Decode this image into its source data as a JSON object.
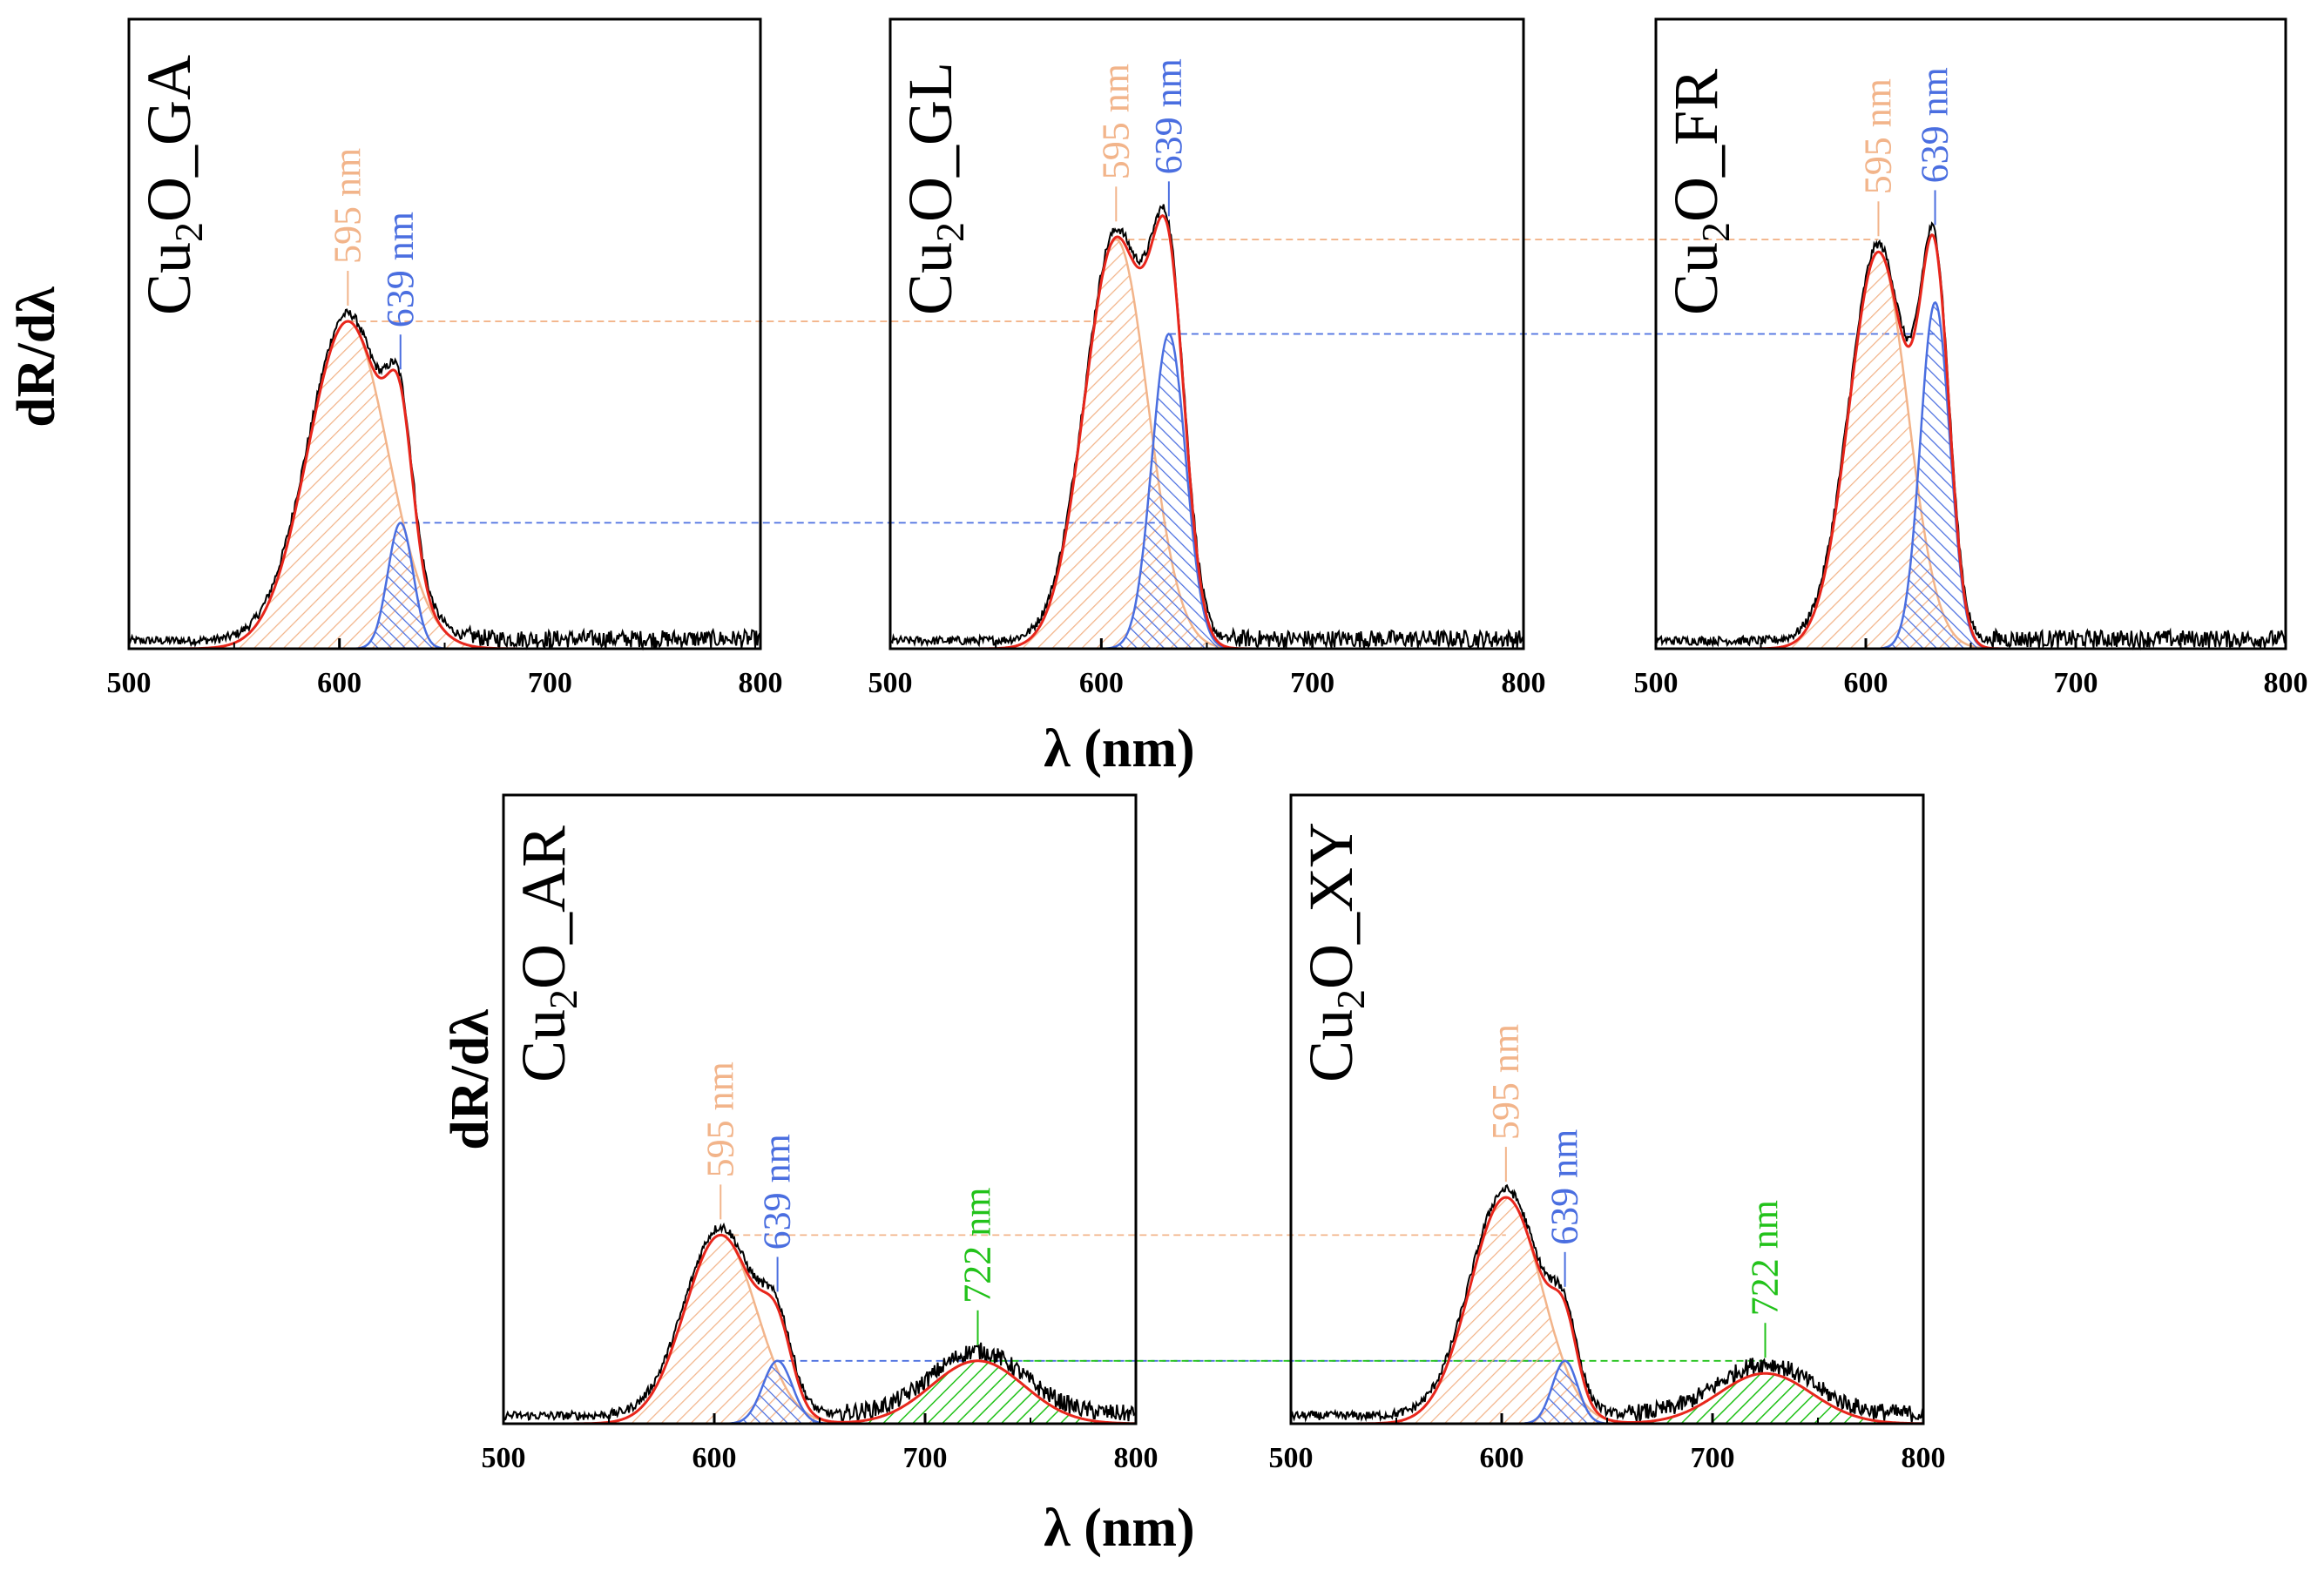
{
  "colors": {
    "peak_595": "#f2b48a",
    "peak_639": "#4a6ee0",
    "peak_722": "#22c21a",
    "fit": "#e8261c",
    "data": "#000000"
  },
  "figure": {
    "y_axis_title": "dR/dλ",
    "x_axis_title": "λ (nm)"
  },
  "chart_data": [
    {
      "type": "line",
      "panel": "Cu2O_GA",
      "title": "Cu2O_GA",
      "title_parts": [
        "Cu",
        "2",
        "O_GA"
      ],
      "xlabel": "λ (nm)",
      "ylabel": "dR/dλ",
      "xlim": [
        500,
        800
      ],
      "ylim": [
        0,
        1
      ],
      "xticks": [
        500,
        600,
        700,
        800
      ],
      "xtick_labels": [
        "500",
        "600",
        "700",
        "800"
      ],
      "series": [
        {
          "name": "595 nm",
          "center": 604,
          "sigma": 19,
          "amplitude": 0.52,
          "color": "#f2b48a",
          "label_x": 604
        },
        {
          "name": "639 nm",
          "center": 629,
          "sigma": 6,
          "amplitude": 0.2,
          "color": "#4a6ee0",
          "label_x": 629
        }
      ]
    },
    {
      "type": "line",
      "panel": "Cu2O_GL",
      "title": "Cu2O_GL",
      "title_parts": [
        "Cu",
        "2",
        "O_GL"
      ],
      "xlabel": "λ (nm)",
      "ylabel": "dR/dλ",
      "xlim": [
        500,
        800
      ],
      "ylim": [
        0,
        1
      ],
      "xticks": [
        500,
        600,
        700,
        800
      ],
      "xtick_labels": [
        "500",
        "600",
        "700",
        "800"
      ],
      "series": [
        {
          "name": "595 nm",
          "center": 607,
          "sigma": 15,
          "amplitude": 0.65,
          "color": "#f2b48a",
          "label_x": 607
        },
        {
          "name": "639 nm",
          "center": 632,
          "sigma": 8,
          "amplitude": 0.5,
          "color": "#4a6ee0",
          "label_x": 632
        }
      ]
    },
    {
      "type": "line",
      "panel": "Cu2O_FR",
      "title": "Cu2O_FR",
      "title_parts": [
        "Cu",
        "2",
        "O_FR"
      ],
      "xlabel": "λ (nm)",
      "ylabel": "dR/dλ",
      "xlim": [
        500,
        800
      ],
      "ylim": [
        0,
        1
      ],
      "xticks": [
        500,
        600,
        700,
        800
      ],
      "xtick_labels": [
        "500",
        "600",
        "700",
        "800"
      ],
      "series": [
        {
          "name": "595 nm",
          "center": 606,
          "sigma": 14,
          "amplitude": 0.63,
          "color": "#f2b48a",
          "label_x": 606
        },
        {
          "name": "639 nm",
          "center": 633,
          "sigma": 7,
          "amplitude": 0.55,
          "color": "#4a6ee0",
          "label_x": 633
        }
      ]
    },
    {
      "type": "line",
      "panel": "Cu2O_AR",
      "title": "Cu2O_AR",
      "title_parts": [
        "Cu",
        "2",
        "O_AR"
      ],
      "xlabel": "λ (nm)",
      "ylabel": "dR/dλ",
      "xlim": [
        500,
        800
      ],
      "ylim": [
        0,
        1
      ],
      "xticks": [
        500,
        600,
        700,
        800
      ],
      "xtick_labels": [
        "500",
        "600",
        "700",
        "800"
      ],
      "series": [
        {
          "name": "595 nm",
          "center": 603,
          "sigma": 17,
          "amplitude": 0.3,
          "color": "#f2b48a",
          "label_x": 603
        },
        {
          "name": "639 nm",
          "center": 630,
          "sigma": 7,
          "amplitude": 0.1,
          "color": "#4a6ee0",
          "label_x": 630
        },
        {
          "name": "722 nm",
          "center": 725,
          "sigma": 22,
          "amplitude": 0.1,
          "color": "#22c21a",
          "label_x": 725
        }
      ]
    },
    {
      "type": "line",
      "panel": "Cu2O_XY",
      "title": "Cu2O_XY",
      "title_parts": [
        "Cu",
        "2",
        "O_XY"
      ],
      "xlabel": "λ (nm)",
      "ylabel": "dR/dλ",
      "xlim": [
        500,
        800
      ],
      "ylim": [
        0,
        1
      ],
      "xticks": [
        500,
        600,
        700,
        800
      ],
      "xtick_labels": [
        "500",
        "600",
        "700",
        "800"
      ],
      "series": [
        {
          "name": "595 nm",
          "center": 602,
          "sigma": 17,
          "amplitude": 0.36,
          "color": "#f2b48a",
          "label_x": 602
        },
        {
          "name": "639 nm",
          "center": 630,
          "sigma": 6,
          "amplitude": 0.1,
          "color": "#4a6ee0",
          "label_x": 630
        },
        {
          "name": "722 nm",
          "center": 725,
          "sigma": 22,
          "amplitude": 0.08,
          "color": "#22c21a",
          "label_x": 725
        }
      ]
    }
  ]
}
